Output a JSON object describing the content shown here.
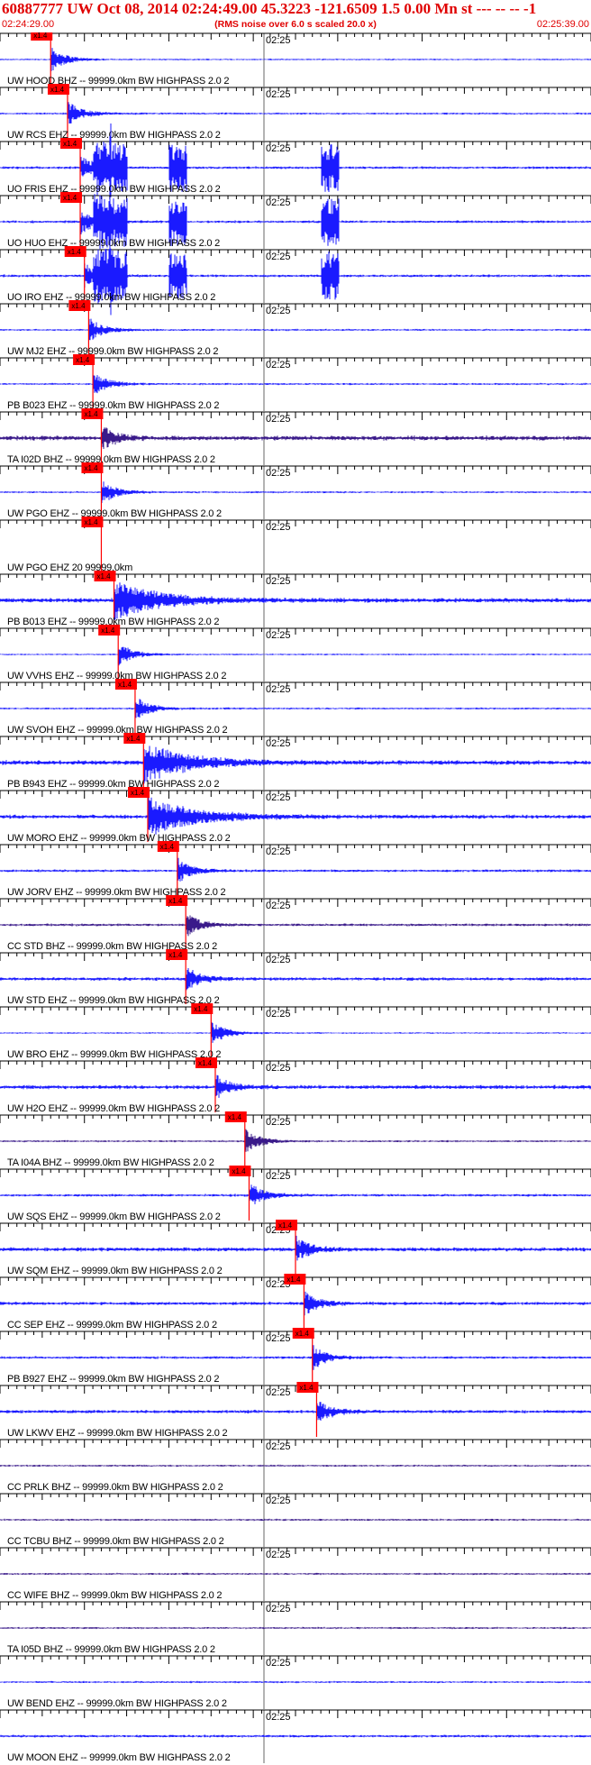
{
  "header": {
    "title": "60887777 UW Oct 08, 2014 02:24:49.00   45.3223 -121.6509  1.5 0.00 Mn st --- -- --  -1",
    "start_time": "02:24:29.00",
    "subtitle": "(RMS noise over 6.0 s scaled 20.0 x)",
    "end_time": "02:25:39.00"
  },
  "colors": {
    "trace": "#1a1aff",
    "trace_dark": "#3a1a8a",
    "pick": "#ff0000",
    "header_text": "#e00000",
    "grid": "#000000"
  },
  "chart_data": {
    "type": "line",
    "x_range_s": [
      0,
      70
    ],
    "minute_tick_label": "02:25",
    "origin_time": "02:24:49.00",
    "pick_label": "x1.4",
    "channels": [
      {
        "label": "UW HOOD BHZ -- 99999.0km BW  HIGHPASS  2.0  2",
        "pick_s": 6.0,
        "noise": 0.12,
        "dark": false
      },
      {
        "label": "UW RCS EHZ -- 99999.0km BW  HIGHPASS  2.0  2",
        "pick_s": 8.0,
        "noise": 0.15,
        "dark": false
      },
      {
        "label": "UO FRIS EHZ -- 99999.0km BW  HIGHPASS  2.0  2",
        "pick_s": 9.5,
        "noise": 0.2,
        "dark": false,
        "bursts_s": [
          11,
          13,
          20,
          38
        ]
      },
      {
        "label": "UO HUO EHZ -- 99999.0km BW  HIGHPASS  2.0  2",
        "pick_s": 9.5,
        "noise": 0.2,
        "dark": false,
        "bursts_s": [
          11,
          13,
          20,
          38
        ]
      },
      {
        "label": "UO IRO EHZ -- 99999.0km BW  HIGHPASS  2.0  2",
        "pick_s": 10.0,
        "noise": 0.2,
        "dark": false,
        "bursts_s": [
          11,
          13,
          20,
          38
        ]
      },
      {
        "label": "UW MJ2 EHZ -- 99999.0km BW  HIGHPASS  2.0  2",
        "pick_s": 10.5,
        "noise": 0.15,
        "dark": false
      },
      {
        "label": "PB B023 EHZ -- 99999.0km BW  HIGHPASS  2.0  2",
        "pick_s": 11.0,
        "noise": 0.15,
        "dark": false
      },
      {
        "label": "TA I02D BHZ -- 99999.0km BW  HIGHPASS  2.0  2",
        "pick_s": 12.0,
        "noise": 0.35,
        "dark": true
      },
      {
        "label": "UW PGO EHZ -- 99999.0km BW  HIGHPASS  2.0  2",
        "pick_s": 12.0,
        "noise": 0.15,
        "dark": false
      },
      {
        "label": "UW PGO EHZ 20 99999.0km",
        "pick_s": 12.0,
        "noise": 0,
        "dark": false
      },
      {
        "label": "PB B013 EHZ -- 99999.0km BW  HIGHPASS  2.0  2",
        "pick_s": 13.5,
        "noise": 0.35,
        "dark": false,
        "quake": true
      },
      {
        "label": "UW VVHS EHZ -- 99999.0km BW  HIGHPASS  2.0  2",
        "pick_s": 14.0,
        "noise": 0.12,
        "dark": false
      },
      {
        "label": "UW SVOH EHZ -- 99999.0km BW  HIGHPASS  2.0  2",
        "pick_s": 16.0,
        "noise": 0.15,
        "dark": false
      },
      {
        "label": "PB B943 EHZ -- 99999.0km BW  HIGHPASS  2.0  2",
        "pick_s": 17.0,
        "noise": 0.35,
        "dark": false,
        "quake": true
      },
      {
        "label": "UW MORO EHZ -- 99999.0km BW  HIGHPASS  2.0  2",
        "pick_s": 17.5,
        "noise": 0.3,
        "dark": false,
        "quake": true
      },
      {
        "label": "UW JORV EHZ -- 99999.0km BW  HIGHPASS  2.0  2",
        "pick_s": 21.0,
        "noise": 0.2,
        "dark": false
      },
      {
        "label": "CC STD BHZ -- 99999.0km BW  HIGHPASS  2.0  2",
        "pick_s": 22.0,
        "noise": 0.2,
        "dark": true
      },
      {
        "label": "UW STD EHZ -- 99999.0km BW  HIGHPASS  2.0  2",
        "pick_s": 22.0,
        "noise": 0.25,
        "dark": false
      },
      {
        "label": "UW BRO EHZ -- 99999.0km BW  HIGHPASS  2.0  2",
        "pick_s": 25.0,
        "noise": 0.12,
        "dark": false
      },
      {
        "label": "UW H2O EHZ -- 99999.0km BW  HIGHPASS  2.0  2",
        "pick_s": 25.5,
        "noise": 0.3,
        "dark": false
      },
      {
        "label": "TA I04A BHZ -- 99999.0km BW  HIGHPASS  2.0  2",
        "pick_s": 29.0,
        "noise": 0.15,
        "dark": true
      },
      {
        "label": "UW SQS EHZ -- 99999.0km BW  HIGHPASS  2.0  2",
        "pick_s": 29.5,
        "noise": 0.2,
        "dark": false
      },
      {
        "label": "UW SQM EHZ -- 99999.0km BW  HIGHPASS  2.0  2",
        "pick_s": 35.0,
        "noise": 0.3,
        "dark": false
      },
      {
        "label": "CC SEP EHZ -- 99999.0km BW  HIGHPASS  2.0  2",
        "pick_s": 36.0,
        "noise": 0.25,
        "dark": false
      },
      {
        "label": "PB B927 EHZ -- 99999.0km BW  HIGHPASS  2.0  2",
        "pick_s": 37.0,
        "noise": 0.2,
        "dark": false
      },
      {
        "label": "UW LKWV EHZ -- 99999.0km BW  HIGHPASS  2.0  2",
        "pick_s": 37.5,
        "noise": 0.25,
        "dark": false
      },
      {
        "label": "CC PRLK BHZ -- 99999.0km BW  HIGHPASS  2.0  2",
        "noise": 0.15,
        "dark": true
      },
      {
        "label": "CC TCBU BHZ -- 99999.0km BW  HIGHPASS  2.0  2",
        "noise": 0.15,
        "dark": true
      },
      {
        "label": "CC WIFE BHZ -- 99999.0km BW  HIGHPASS  2.0  2",
        "noise": 0.15,
        "dark": true
      },
      {
        "label": "TA I05D BHZ -- 99999.0km BW  HIGHPASS  2.0  2",
        "noise": 0.15,
        "dark": true
      },
      {
        "label": "UW BEND EHZ -- 99999.0km BW  HIGHPASS  2.0  2",
        "noise": 0.15,
        "dark": false
      },
      {
        "label": "UW MOON EHZ -- 99999.0km BW  HIGHPASS  2.0  2",
        "noise": 0.2,
        "dark": false
      }
    ]
  }
}
